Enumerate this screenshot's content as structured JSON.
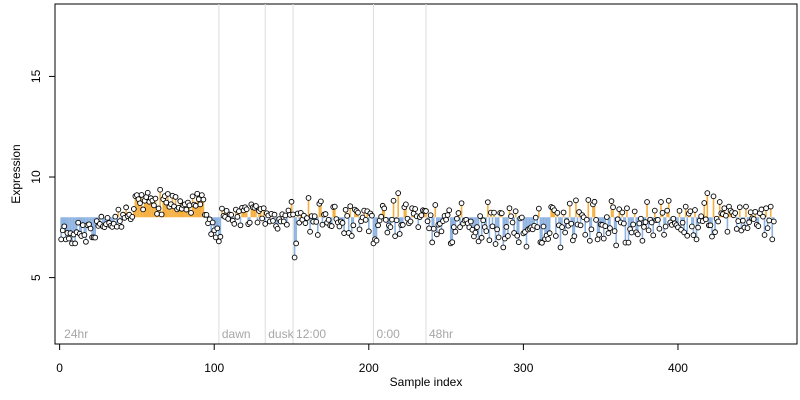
{
  "chart_data": {
    "type": "scatter",
    "title": "",
    "xlabel": "Sample index",
    "ylabel": "Expression",
    "xlim": [
      -3,
      477
    ],
    "ylim": [
      1.7,
      18.6
    ],
    "xticks": [
      0,
      100,
      200,
      300,
      400
    ],
    "yticks": [
      5,
      10,
      15
    ],
    "grid": false,
    "baseline": 8.0,
    "colors": {
      "above": "#f5b041",
      "below": "#8fb3e0",
      "point_fill": "#ffffff",
      "point_stroke": "#000000",
      "divider": "#dddddd",
      "phase_label": "#a6a6a6"
    },
    "phases": [
      {
        "label": "24hr",
        "x": 1,
        "divider": false
      },
      {
        "label": "dawn",
        "x": 103,
        "divider": true
      },
      {
        "label": "dusk",
        "x": 133,
        "divider": true
      },
      {
        "label": "12:00",
        "x": 151,
        "divider": true
      },
      {
        "label": "0:00",
        "x": 203,
        "divider": true
      },
      {
        "label": "48hr",
        "x": 237,
        "divider": true
      }
    ],
    "segments": [
      {
        "from": 1,
        "to": 23,
        "start": 7.2,
        "end": 7.4,
        "noise": 0.3
      },
      {
        "from": 24,
        "to": 48,
        "start": 7.6,
        "end": 8.0,
        "noise": 0.35
      },
      {
        "from": 49,
        "to": 95,
        "start": 8.8,
        "end": 8.6,
        "noise": 0.3
      },
      {
        "from": 96,
        "to": 104,
        "start": 7.6,
        "end": 7.2,
        "noise": 0.35
      },
      {
        "from": 105,
        "to": 150,
        "start": 8.3,
        "end": 8.0,
        "noise": 0.35
      },
      {
        "from": 151,
        "to": 202,
        "start": 8.0,
        "end": 7.8,
        "noise": 0.45
      },
      {
        "from": 203,
        "to": 236,
        "start": 7.6,
        "end": 8.2,
        "noise": 0.4
      },
      {
        "from": 237,
        "to": 320,
        "start": 7.6,
        "end": 7.7,
        "noise": 0.55
      },
      {
        "from": 321,
        "to": 410,
        "start": 7.7,
        "end": 7.8,
        "noise": 0.5
      },
      {
        "from": 411,
        "to": 462,
        "start": 8.3,
        "end": 7.9,
        "noise": 0.5
      }
    ],
    "outliers": [
      {
        "x": 8,
        "y": 6.7
      },
      {
        "x": 10,
        "y": 6.7
      },
      {
        "x": 101,
        "y": 7.0
      },
      {
        "x": 103,
        "y": 6.8
      },
      {
        "x": 152,
        "y": 6.0
      },
      {
        "x": 153,
        "y": 6.7
      },
      {
        "x": 203,
        "y": 6.7
      },
      {
        "x": 253,
        "y": 6.7
      },
      {
        "x": 287,
        "y": 6.5
      },
      {
        "x": 324,
        "y": 6.5
      },
      {
        "x": 360,
        "y": 6.6
      },
      {
        "x": 412,
        "y": 6.9
      },
      {
        "x": 419,
        "y": 9.2
      },
      {
        "x": 461,
        "y": 6.9
      },
      {
        "x": 50,
        "y": 9.1
      },
      {
        "x": 92,
        "y": 9.1
      },
      {
        "x": 219,
        "y": 9.2
      }
    ]
  }
}
